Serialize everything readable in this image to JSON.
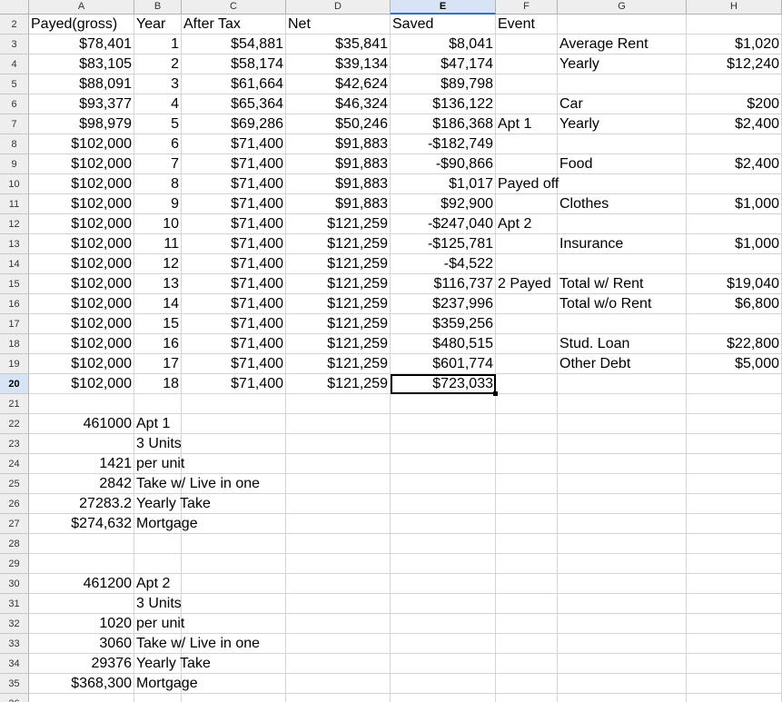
{
  "columns": [
    "A",
    "B",
    "C",
    "D",
    "E",
    "F",
    "G",
    "H"
  ],
  "selected_column": "E",
  "selected_row": "20",
  "rows": [
    {
      "num": "2",
      "cells": {
        "A": "Payed(gross)",
        "B": "Year",
        "C": "After Tax",
        "D": "Net",
        "E": "Saved",
        "F": "Event"
      }
    },
    {
      "num": "3",
      "cells": {
        "A": "$78,401",
        "B": "1",
        "C": "$54,881",
        "D": "$35,841",
        "E": "$8,041",
        "G": "Average Rent",
        "H": "$1,020"
      }
    },
    {
      "num": "4",
      "cells": {
        "A": "$83,105",
        "B": "2",
        "C": "$58,174",
        "D": "$39,134",
        "E": "$47,174",
        "G": "Yearly",
        "H": "$12,240"
      }
    },
    {
      "num": "5",
      "cells": {
        "A": "$88,091",
        "B": "3",
        "C": "$61,664",
        "D": "$42,624",
        "E": "$89,798"
      }
    },
    {
      "num": "6",
      "cells": {
        "A": "$93,377",
        "B": "4",
        "C": "$65,364",
        "D": "$46,324",
        "E": "$136,122",
        "G": "Car",
        "H": "$200"
      }
    },
    {
      "num": "7",
      "cells": {
        "A": "$98,979",
        "B": "5",
        "C": "$69,286",
        "D": "$50,246",
        "E": "$186,368",
        "F": "Apt 1",
        "G": "Yearly",
        "H": "$2,400"
      }
    },
    {
      "num": "8",
      "cells": {
        "A": "$102,000",
        "B": "6",
        "C": "$71,400",
        "D": "$91,883",
        "E": "-$182,749"
      }
    },
    {
      "num": "9",
      "cells": {
        "A": "$102,000",
        "B": "7",
        "C": "$71,400",
        "D": "$91,883",
        "E": "-$90,866",
        "G": "Food",
        "H": "$2,400"
      }
    },
    {
      "num": "10",
      "cells": {
        "A": "$102,000",
        "B": "8",
        "C": "$71,400",
        "D": "$91,883",
        "E": "$1,017",
        "F": "Payed off"
      }
    },
    {
      "num": "11",
      "cells": {
        "A": "$102,000",
        "B": "9",
        "C": "$71,400",
        "D": "$91,883",
        "E": "$92,900",
        "G": "Clothes",
        "H": "$1,000"
      }
    },
    {
      "num": "12",
      "cells": {
        "A": "$102,000",
        "B": "10",
        "C": "$71,400",
        "D": "$121,259",
        "E": "-$247,040",
        "F": "Apt 2"
      }
    },
    {
      "num": "13",
      "cells": {
        "A": "$102,000",
        "B": "11",
        "C": "$71,400",
        "D": "$121,259",
        "E": "-$125,781",
        "G": "Insurance",
        "H": "$1,000"
      }
    },
    {
      "num": "14",
      "cells": {
        "A": "$102,000",
        "B": "12",
        "C": "$71,400",
        "D": "$121,259",
        "E": "-$4,522"
      }
    },
    {
      "num": "15",
      "cells": {
        "A": "$102,000",
        "B": "13",
        "C": "$71,400",
        "D": "$121,259",
        "E": "$116,737",
        "F": "2 Payed",
        "G": "Total w/ Rent",
        "H": "$19,040"
      }
    },
    {
      "num": "16",
      "cells": {
        "A": "$102,000",
        "B": "14",
        "C": "$71,400",
        "D": "$121,259",
        "E": "$237,996",
        "G": "Total w/o Rent",
        "H": "$6,800"
      }
    },
    {
      "num": "17",
      "cells": {
        "A": "$102,000",
        "B": "15",
        "C": "$71,400",
        "D": "$121,259",
        "E": "$359,256"
      }
    },
    {
      "num": "18",
      "cells": {
        "A": "$102,000",
        "B": "16",
        "C": "$71,400",
        "D": "$121,259",
        "E": "$480,515",
        "G": "Stud. Loan",
        "H": "$22,800"
      }
    },
    {
      "num": "19",
      "cells": {
        "A": "$102,000",
        "B": "17",
        "C": "$71,400",
        "D": "$121,259",
        "E": "$601,774",
        "G": "Other Debt",
        "H": "$5,000"
      }
    },
    {
      "num": "20",
      "cells": {
        "A": "$102,000",
        "B": "18",
        "C": "$71,400",
        "D": "$121,259",
        "E": "$723,033"
      }
    },
    {
      "num": "21",
      "cells": {}
    },
    {
      "num": "22",
      "cells": {
        "A": "461000",
        "B": "Apt 1"
      }
    },
    {
      "num": "23",
      "cells": {
        "B": "3 Units"
      }
    },
    {
      "num": "24",
      "cells": {
        "A": "1421",
        "B": "per unit"
      }
    },
    {
      "num": "25",
      "cells": {
        "A": "2842",
        "B": "Take w/ Live in one"
      }
    },
    {
      "num": "26",
      "cells": {
        "A": "27283.2",
        "B": "Yearly Take"
      }
    },
    {
      "num": "27",
      "cells": {
        "A": "$274,632",
        "B": "Mortgage"
      }
    },
    {
      "num": "28",
      "cells": {}
    },
    {
      "num": "29",
      "cells": {}
    },
    {
      "num": "30",
      "cells": {
        "A": "461200",
        "B": "Apt 2"
      }
    },
    {
      "num": "31",
      "cells": {
        "B": "3 Units"
      }
    },
    {
      "num": "32",
      "cells": {
        "A": "1020",
        "B": "per unit"
      }
    },
    {
      "num": "33",
      "cells": {
        "A": "3060",
        "B": "Take w/ Live in one"
      }
    },
    {
      "num": "34",
      "cells": {
        "A": "29376",
        "B": "Yearly Take"
      }
    },
    {
      "num": "35",
      "cells": {
        "A": "$368,300",
        "B": "Mortgage"
      }
    },
    {
      "num": "36",
      "cells": {}
    }
  ]
}
